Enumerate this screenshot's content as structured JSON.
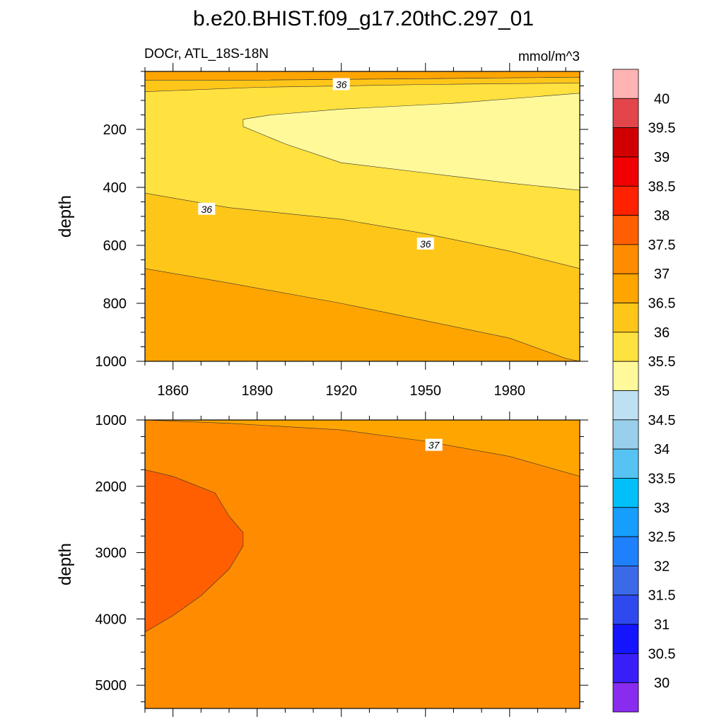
{
  "page": {
    "title": "b.e20.BHIST.f09_g17.20thC.297_01",
    "variable_label": "DOCr, ATL_18S-18N",
    "units_label": "mmol/m^3"
  },
  "chart_data": [
    {
      "type": "heatmap",
      "panel": "upper",
      "xlabel": "",
      "ylabel": "depth",
      "xlim": [
        1850,
        2005
      ],
      "ylim": [
        1000,
        0
      ],
      "xticks": [
        1860,
        1890,
        1920,
        1950,
        1980
      ],
      "xtick_labels": [
        "1860",
        "1890",
        "1920",
        "1950",
        "1980"
      ],
      "yticks": [
        200,
        400,
        600,
        800,
        1000
      ],
      "ytick_labels": [
        "200",
        "400",
        "600",
        "800",
        "1000"
      ],
      "contour_labels": [
        {
          "text": "36",
          "year": 1920,
          "depth": 45
        },
        {
          "text": "36",
          "year": 1872,
          "depth": 475
        },
        {
          "text": "36",
          "year": 1950,
          "depth": 595
        }
      ],
      "regions": [
        {
          "level": "36.5-37",
          "color": "#FFA500",
          "polygon": [
            [
              1850,
              0
            ],
            [
              2005,
              0
            ],
            [
              2005,
              20
            ],
            [
              1950,
              25
            ],
            [
              1890,
              30
            ],
            [
              1850,
              30
            ]
          ]
        },
        {
          "level": "36-36.5",
          "color": "#FFC61A",
          "polygon": [
            [
              1850,
              30
            ],
            [
              1890,
              30
            ],
            [
              1950,
              25
            ],
            [
              2005,
              20
            ],
            [
              2005,
              40
            ],
            [
              1950,
              45
            ],
            [
              1890,
              55
            ],
            [
              1850,
              70
            ]
          ]
        },
        {
          "level": "36-36.5",
          "color": "#FFC61A",
          "polygon": [
            [
              1850,
              420
            ],
            [
              1880,
              470
            ],
            [
              1920,
              510
            ],
            [
              1950,
              560
            ],
            [
              1980,
              620
            ],
            [
              2005,
              680
            ],
            [
              2005,
              1000
            ],
            [
              1850,
              1000
            ]
          ]
        },
        {
          "level": "36.5-37",
          "color": "#FFA500",
          "polygon": [
            [
              1850,
              680
            ],
            [
              1880,
              730
            ],
            [
              1920,
              800
            ],
            [
              1950,
              860
            ],
            [
              1980,
              920
            ],
            [
              2000,
              990
            ],
            [
              2005,
              1000
            ],
            [
              1850,
              1000
            ]
          ]
        },
        {
          "level": "35-35.5",
          "color": "#FFF99A",
          "polygon": [
            [
              1885,
              165
            ],
            [
              1895,
              150
            ],
            [
              1920,
              130
            ],
            [
              1960,
              110
            ],
            [
              2005,
              75
            ],
            [
              2005,
              410
            ],
            [
              1980,
              385
            ],
            [
              1950,
              350
            ],
            [
              1920,
              315
            ],
            [
              1900,
              250
            ],
            [
              1890,
              210
            ],
            [
              1885,
              190
            ]
          ]
        }
      ],
      "background_level": {
        "level": "35.5-36",
        "color": "#FFE13F"
      }
    },
    {
      "type": "heatmap",
      "panel": "lower",
      "xlabel": "",
      "ylabel": "depth",
      "xlim": [
        1850,
        2005
      ],
      "ylim": [
        5350,
        1000
      ],
      "yticks": [
        1000,
        2000,
        3000,
        4000,
        5000
      ],
      "ytick_labels": [
        "1000",
        "2000",
        "3000",
        "4000",
        "5000"
      ],
      "contour_labels": [
        {
          "text": "37",
          "year": 1953,
          "depth": 1380
        }
      ],
      "regions": [
        {
          "level": "36.5-37",
          "color": "#FFA500",
          "polygon": [
            [
              1850,
              1000
            ],
            [
              1880,
              1050
            ],
            [
              1920,
              1150
            ],
            [
              1950,
              1320
            ],
            [
              1980,
              1550
            ],
            [
              2005,
              1850
            ],
            [
              2005,
              1000
            ]
          ]
        },
        {
          "level": "37.5-38",
          "color": "#FF5F00",
          "polygon": [
            [
              1850,
              1750
            ],
            [
              1860,
              1850
            ],
            [
              1875,
              2100
            ],
            [
              1880,
              2450
            ],
            [
              1885,
              2700
            ],
            [
              1885,
              2900
            ],
            [
              1880,
              3250
            ],
            [
              1870,
              3650
            ],
            [
              1860,
              3950
            ],
            [
              1850,
              4200
            ]
          ]
        }
      ],
      "background_level": {
        "level": "37-37.5",
        "color": "#FF8C00"
      }
    }
  ],
  "colorbar": {
    "labels": [
      "40",
      "39.5",
      "39",
      "38.5",
      "38",
      "37.5",
      "37",
      "36.5",
      "36",
      "35.5",
      "35",
      "34.5",
      "34",
      "33.5",
      "33",
      "32.5",
      "32",
      "31.5",
      "31",
      "30.5",
      "30"
    ],
    "colors": [
      "#FFB3B3",
      "#E2464B",
      "#D00000",
      "#F00000",
      "#FF2200",
      "#FF5F00",
      "#FF8C00",
      "#FFA500",
      "#FFC61A",
      "#FFE13F",
      "#FFF99A",
      "#BDE1F2",
      "#98CFEA",
      "#56C3F3",
      "#00BFF9",
      "#169EFC",
      "#1F80FC",
      "#3A6AE8",
      "#2E4AEF",
      "#1414FF",
      "#3A1EF7",
      "#8A2BF0"
    ]
  }
}
